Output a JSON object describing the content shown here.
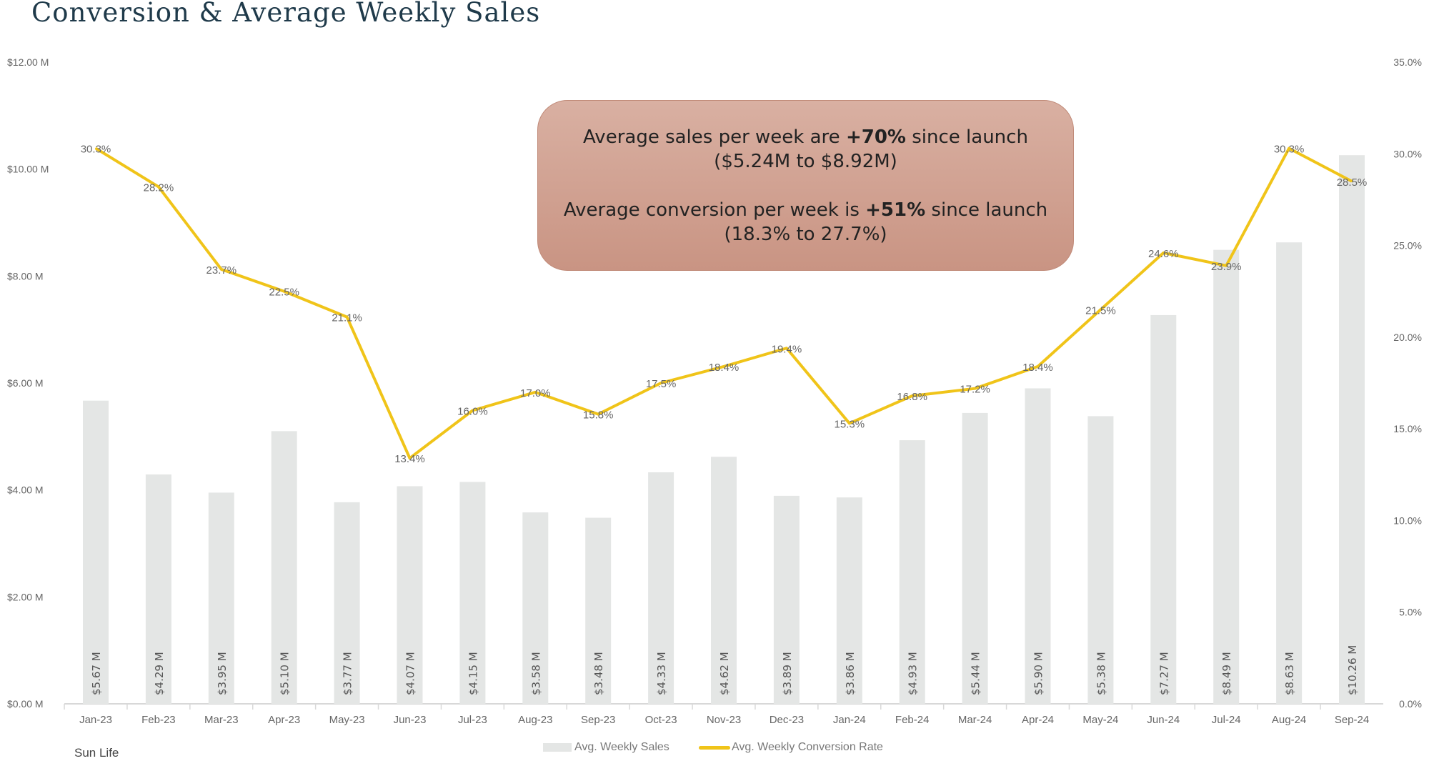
{
  "title": "Conversion & Average Weekly Sales",
  "callout": {
    "line1_pre": "Average sales per week are ",
    "line1_bold": "+70%",
    "line1_post": " since launch",
    "line2": "($5.24M to $8.92M)",
    "line3_pre": "Average conversion per week is ",
    "line3_bold": "+51%",
    "line3_post": " since launch",
    "line4": "(18.3% to 27.7%)"
  },
  "footer": "Sun Life",
  "colors": {
    "bar": "#e4e6e5",
    "line": "#f0c419",
    "callout_bg": "#d1a292"
  },
  "chart_data": {
    "type": "bar+line",
    "categories": [
      "Jan-23",
      "Feb-23",
      "Mar-23",
      "Apr-23",
      "May-23",
      "Jun-23",
      "Jul-23",
      "Aug-23",
      "Sep-23",
      "Oct-23",
      "Nov-23",
      "Dec-23",
      "Jan-24",
      "Feb-24",
      "Mar-24",
      "Apr-24",
      "May-24",
      "Jun-24",
      "Jul-24",
      "Aug-24",
      "Sep-24"
    ],
    "series": [
      {
        "name": "Avg. Weekly Sales",
        "type": "bar",
        "axis": "left",
        "values": [
          5.67,
          4.29,
          3.95,
          5.1,
          3.77,
          4.07,
          4.15,
          3.58,
          3.48,
          4.33,
          4.62,
          3.89,
          3.86,
          4.93,
          5.44,
          5.9,
          5.38,
          7.27,
          8.49,
          8.63,
          10.26
        ],
        "labels": [
          "$5.67 M",
          "$4.29 M",
          "$3.95 M",
          "$5.10 M",
          "$3.77 M",
          "$4.07 M",
          "$4.15 M",
          "$3.58 M",
          "$3.48 M",
          "$4.33 M",
          "$4.62 M",
          "$3.89 M",
          "$3.86 M",
          "$4.93 M",
          "$5.44 M",
          "$5.90 M",
          "$5.38 M",
          "$7.27 M",
          "$8.49 M",
          "$8.63 M",
          "$10.26 M"
        ]
      },
      {
        "name": "Avg. Weekly Conversion Rate",
        "type": "line",
        "axis": "right",
        "values": [
          30.3,
          28.2,
          23.7,
          22.5,
          21.1,
          13.4,
          16.0,
          17.0,
          15.8,
          17.5,
          18.4,
          19.4,
          15.3,
          16.8,
          17.2,
          18.4,
          21.5,
          24.6,
          23.9,
          30.3,
          28.5
        ],
        "labels": [
          "30.3%",
          "28.2%",
          "23.7%",
          "22.5%",
          "21.1%",
          "13.4%",
          "16.0%",
          "17.0%",
          "15.8%",
          "17.5%",
          "18.4%",
          "19.4%",
          "15.3%",
          "16.8%",
          "17.2%",
          "18.4%",
          "21.5%",
          "24.6%",
          "23.9%",
          "30.3%",
          "28.5%"
        ]
      }
    ],
    "left_axis": {
      "range": [
        0,
        12
      ],
      "ticks": [
        "$0.00 M",
        "$2.00 M",
        "$4.00 M",
        "$6.00 M",
        "$8.00 M",
        "$10.00 M",
        "$12.00 M"
      ]
    },
    "right_axis": {
      "range": [
        0,
        35
      ],
      "ticks": [
        "0.0%",
        "5.0%",
        "10.0%",
        "15.0%",
        "20.0%",
        "25.0%",
        "30.0%",
        "35.0%"
      ]
    },
    "grid": false,
    "legend": "bottom"
  }
}
